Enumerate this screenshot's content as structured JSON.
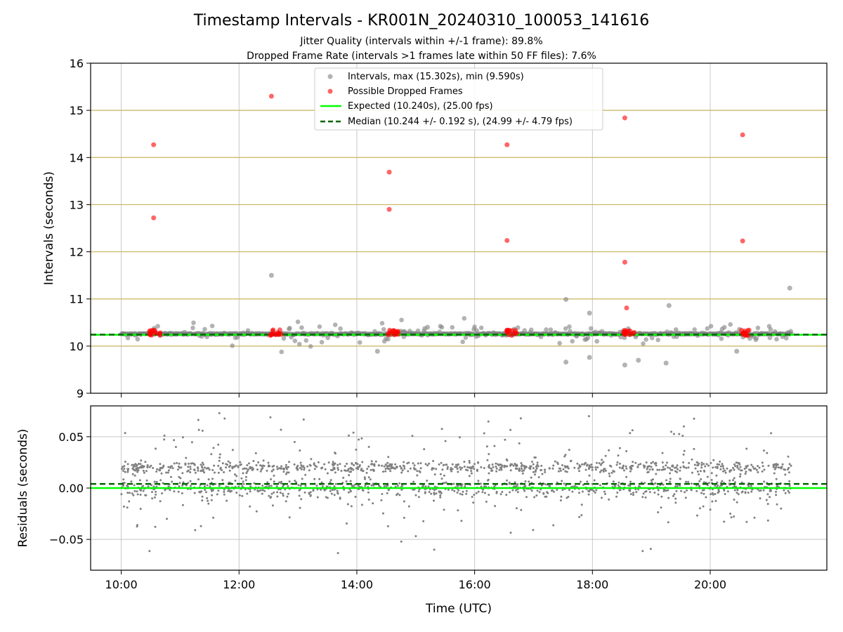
{
  "header": {
    "title": "Timestamp Intervals - KR001N_20240310_100053_141616",
    "subtitle1": "Jitter Quality (intervals within +/-1 frame): 89.8%",
    "subtitle2": "Dropped Frame Rate (intervals >1 frames late within 50 FF files): 7.6%"
  },
  "chart_data": [
    {
      "type": "scatter",
      "xlabel": "",
      "ylabel": "Intervals (seconds)",
      "xlim": [
        9.48,
        21.98
      ],
      "ylim": [
        9,
        16
      ],
      "x_ticks": [
        "10:00",
        "12:00",
        "14:00",
        "16:00",
        "18:00",
        "20:00"
      ],
      "y_ticks": [
        "9",
        "10",
        "11",
        "12",
        "13",
        "14",
        "15",
        "16"
      ],
      "legend_position": "top-center",
      "legend": [
        "Intervals, max (15.302s), min (9.590s)",
        "Possible Dropped Frames",
        "Expected (10.240s), (25.00 fps)",
        "Median (10.244 +/- 0.192 s), (24.99 +/- 4.79 fps)"
      ],
      "reference_lines": {
        "expected": 10.24,
        "median": 10.244
      },
      "horizontal_guides": [
        10.0,
        11.0,
        12.0,
        13.0,
        14.0,
        15.0
      ],
      "dropped_frames": {
        "x": [
          10.55,
          10.55,
          12.55,
          14.55,
          14.55,
          16.55,
          16.55,
          18.55,
          18.55,
          18.58,
          20.55,
          20.55
        ],
        "y": [
          14.27,
          12.72,
          15.3,
          13.69,
          12.9,
          14.27,
          12.24,
          14.84,
          11.78,
          10.81,
          14.48,
          12.23
        ]
      },
      "outliers": {
        "x": [
          12.55,
          15.2,
          17.55,
          17.55,
          17.95,
          17.95,
          18.55,
          19.25,
          19.3,
          21.35,
          18.78,
          14.35,
          20.45
        ],
        "y": [
          11.5,
          10.4,
          10.99,
          9.66,
          10.7,
          9.76,
          9.6,
          9.64,
          10.86,
          11.23,
          9.7,
          9.89,
          9.89
        ]
      },
      "series": [
        {
          "name": "Intervals, max (15.302s), min (9.590s)",
          "center": 10.26,
          "x_range": [
            10.0,
            21.38
          ]
        }
      ]
    },
    {
      "type": "scatter",
      "xlabel": "Time (UTC)",
      "ylabel": "Residuals (seconds)",
      "xlim": [
        9.48,
        21.98
      ],
      "ylim": [
        -0.08,
        0.08
      ],
      "x_ticks": [
        "10:00",
        "12:00",
        "14:00",
        "16:00",
        "18:00",
        "20:00"
      ],
      "y_ticks": [
        "0.05",
        "0.00",
        "−0.05"
      ],
      "reference_lines": {
        "expected": 0.0,
        "median": 0.004
      },
      "series": [
        {
          "name": "",
          "bands": [
            0.0,
            0.02
          ],
          "x_range": [
            10.0,
            21.38
          ]
        }
      ]
    }
  ],
  "colors": {
    "intervals": "#808080",
    "dropped": "#ff0000",
    "expected": "#00ff00",
    "median": "#006400",
    "guide": "#c8b45a",
    "grid": "#b0b0b0"
  }
}
